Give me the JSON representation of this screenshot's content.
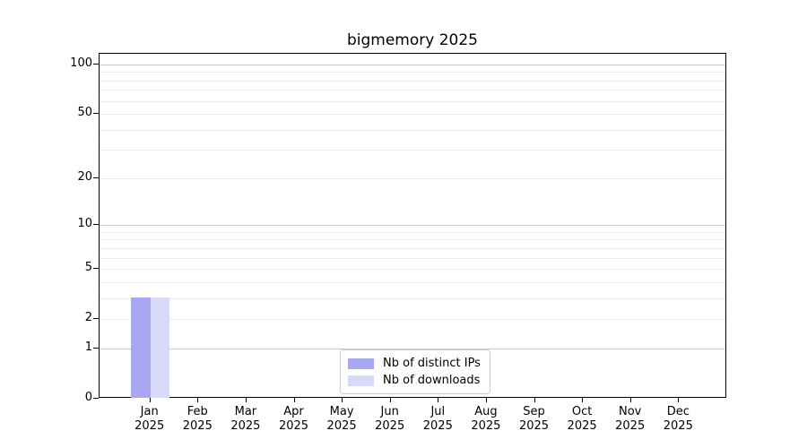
{
  "chart_data": {
    "type": "bar",
    "title": "bigmemory 2025",
    "categories": [
      "Jan",
      "Feb",
      "Mar",
      "Apr",
      "May",
      "Jun",
      "Jul",
      "Aug",
      "Sep",
      "Oct",
      "Nov",
      "Dec"
    ],
    "x_year_label": "2025",
    "series": [
      {
        "name": "Nb of distinct IPs",
        "color": "#a8a8f2",
        "values": [
          3,
          0,
          0,
          0,
          0,
          0,
          0,
          0,
          0,
          0,
          0,
          0
        ]
      },
      {
        "name": "Nb of downloads",
        "color": "#d8d8f8",
        "values": [
          3,
          0,
          0,
          0,
          0,
          0,
          0,
          0,
          0,
          0,
          0,
          0
        ]
      }
    ],
    "yscale": "log1p",
    "ylabel": "",
    "xlabel": "",
    "ylim": [
      0,
      116
    ],
    "yticks": [
      0,
      1,
      2,
      5,
      10,
      20,
      50,
      100
    ],
    "major_gridlines": [
      1,
      10,
      100
    ],
    "minor_gridlines": [
      2,
      3,
      4,
      5,
      6,
      7,
      8,
      9,
      20,
      30,
      40,
      50,
      60,
      70,
      80,
      90
    ],
    "grid": "on",
    "legend_position": "lower center inside plot",
    "colors": {
      "bar_distinct_ips": "#a8a8f2",
      "bar_downloads": "#d8d8f8",
      "grid_major": "#c9c9c9",
      "grid_minor": "#ececec",
      "axis": "#000000",
      "legend_border": "#cccccc",
      "background": "#ffffff"
    }
  }
}
